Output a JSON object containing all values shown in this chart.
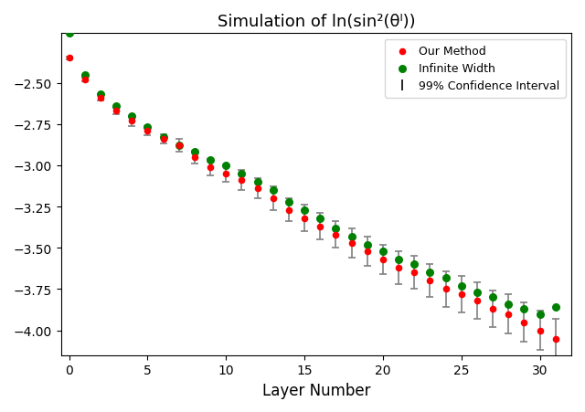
{
  "title": "Simulation of ln(sin²(θˡ))",
  "xlabel": "Layer Number",
  "ylabel": "",
  "xlim": [
    -0.5,
    32
  ],
  "ylim": [
    -4.15,
    -2.2
  ],
  "yticks": [
    -4.0,
    -3.75,
    -3.5,
    -3.25,
    -3.0,
    -2.75,
    -2.5
  ],
  "xticks": [
    0,
    5,
    10,
    15,
    20,
    25,
    30
  ],
  "layers": [
    0,
    1,
    2,
    3,
    4,
    5,
    6,
    7,
    8,
    9,
    10,
    11,
    12,
    13,
    14,
    15,
    16,
    17,
    18,
    19,
    20,
    21,
    22,
    23,
    24,
    25,
    26,
    27,
    28,
    29,
    30,
    31
  ],
  "our_method": [
    -2.35,
    -2.48,
    -2.59,
    -2.67,
    -2.73,
    -2.79,
    -2.84,
    -2.88,
    -2.95,
    -3.01,
    -3.05,
    -3.09,
    -3.14,
    -3.2,
    -3.27,
    -3.32,
    -3.37,
    -3.42,
    -3.47,
    -3.52,
    -3.57,
    -3.62,
    -3.65,
    -3.7,
    -3.75,
    -3.78,
    -3.82,
    -3.87,
    -3.9,
    -3.95,
    -4.0,
    -4.05
  ],
  "infinite_width": [
    -2.2,
    -2.45,
    -2.57,
    -2.64,
    -2.7,
    -2.77,
    -2.83,
    -2.88,
    -2.92,
    -2.97,
    -3.0,
    -3.05,
    -3.1,
    -3.15,
    -3.22,
    -3.27,
    -3.32,
    -3.38,
    -3.43,
    -3.48,
    -3.52,
    -3.57,
    -3.6,
    -3.65,
    -3.68,
    -3.73,
    -3.77,
    -3.8,
    -3.84,
    -3.87,
    -3.9,
    -3.86
  ],
  "error_bars": [
    0.01,
    0.01,
    0.02,
    0.02,
    0.03,
    0.03,
    0.03,
    0.04,
    0.04,
    0.05,
    0.05,
    0.06,
    0.06,
    0.07,
    0.07,
    0.08,
    0.08,
    0.08,
    0.09,
    0.09,
    0.09,
    0.1,
    0.1,
    0.1,
    0.11,
    0.11,
    0.11,
    0.11,
    0.12,
    0.12,
    0.12,
    0.12
  ],
  "our_method_color": "#ff0000",
  "infinite_width_color": "#008000",
  "error_bar_color": "#808080",
  "bg_color": "#ffffff",
  "legend_loc": "upper right"
}
